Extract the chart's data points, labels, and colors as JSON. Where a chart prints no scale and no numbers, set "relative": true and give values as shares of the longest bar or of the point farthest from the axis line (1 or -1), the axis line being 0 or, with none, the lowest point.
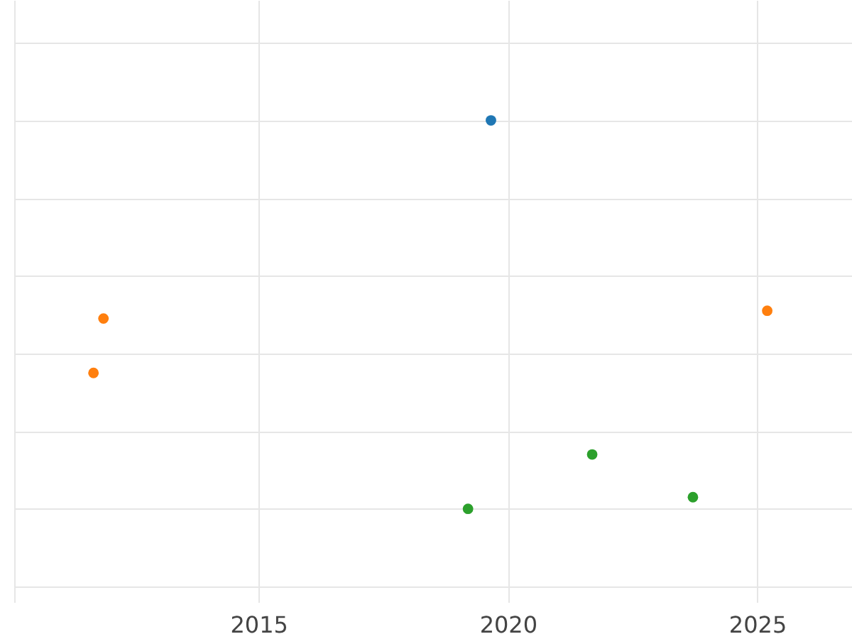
{
  "chart_data": {
    "type": "scatter",
    "relative": true,
    "xlim": [
      2010.1,
      2026.9
    ],
    "xticks": [
      2015,
      2020,
      2025
    ],
    "grid": true,
    "marker": "circle",
    "series": [
      {
        "color": "#1f77b4",
        "x": [
          2019.66
        ],
        "values": [
          1
        ]
      },
      {
        "color": "#ff7f0e",
        "x": [
          2011.89,
          2011.69,
          2025.2
        ],
        "values": [
          0.49,
          0.35,
          0.51
        ]
      },
      {
        "color": "#2ca02c",
        "x": [
          2019.2,
          2021.69,
          2023.71
        ],
        "values": [
          0,
          0.14,
          0.03
        ]
      }
    ]
  }
}
